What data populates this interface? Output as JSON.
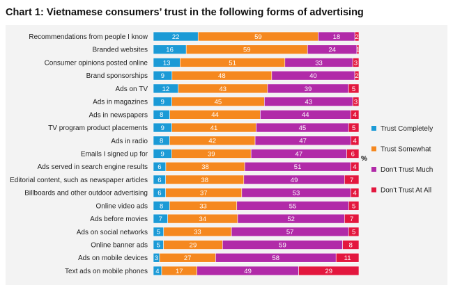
{
  "chart_data": {
    "type": "bar",
    "orientation": "horizontal",
    "stacked": true,
    "title": "Chart 1: Vietnamese consumers’ trust in the following forms of advertising",
    "unit_label": "%",
    "legend_position": "right",
    "categories": [
      "Recommendations from people I know",
      "Branded websites",
      "Consumer opinions posted online",
      "Brand sponsorships",
      "Ads on TV",
      "Ads in magazines",
      "Ads in newspapers",
      "TV program product placements",
      "Ads in radio",
      "Emails I signed up for",
      "Ads served in search engine results",
      "Editorial content, such as newspaper articles",
      "Billboards and other outdoor advertising",
      "Online video ads",
      "Ads before movies",
      "Ads on social networks",
      "Online banner ads",
      "Ads on mobile devices",
      "Text ads on mobile phones"
    ],
    "series": [
      {
        "name": "Trust Completely",
        "color": "#1b9ad6",
        "values": [
          22,
          16,
          13,
          9,
          12,
          9,
          8,
          9,
          8,
          9,
          6,
          6,
          6,
          8,
          7,
          5,
          5,
          3,
          4
        ]
      },
      {
        "name": "Trust Somewhat",
        "color": "#f5881f",
        "values": [
          59,
          59,
          51,
          48,
          43,
          45,
          44,
          41,
          42,
          39,
          38,
          38,
          37,
          33,
          34,
          33,
          29,
          27,
          17
        ]
      },
      {
        "name": "Don't Trust Much",
        "color": "#b12aa8",
        "values": [
          18,
          24,
          33,
          40,
          39,
          43,
          44,
          45,
          47,
          47,
          51,
          49,
          53,
          55,
          52,
          57,
          59,
          58,
          49
        ]
      },
      {
        "name": "Don't Trust At All",
        "color": "#e3173e",
        "values": [
          2,
          1,
          3,
          2,
          5,
          3,
          4,
          5,
          4,
          6,
          4,
          7,
          4,
          5,
          7,
          5,
          8,
          11,
          29
        ]
      }
    ]
  }
}
